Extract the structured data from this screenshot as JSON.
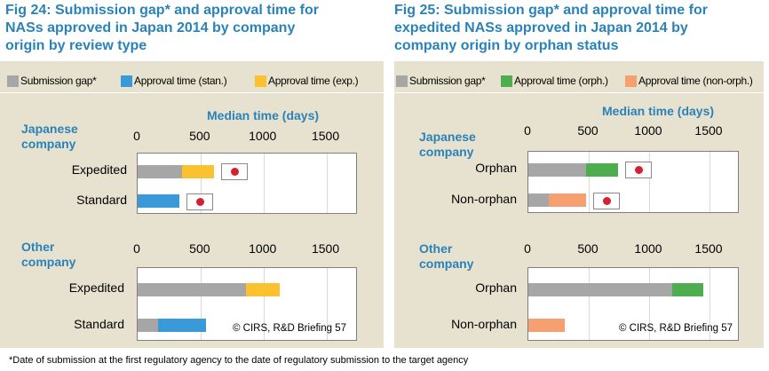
{
  "footnote": "*Date of submission at the first regulatory agency to the date of regulatory submission to the target agency",
  "colors": {
    "submission_gap": "#a6a6a6",
    "approval_standard": "#3a9ad9",
    "approval_expedited": "#f9c22e",
    "approval_orphan": "#4eae4f",
    "approval_non_orphan": "#f5a070",
    "title": "#2a82b8",
    "panel": "#e6e2cf",
    "flag_red": "#d4202f"
  },
  "figures": [
    {
      "title": "Fig 24: Submission gap* and approval time for\nNASs approved in Japan 2014 by company\norigin by review type",
      "legend": [
        {
          "label": "Submission gap*",
          "color": "#a6a6a6"
        },
        {
          "label": "Approval time (stan.)",
          "color": "#3a9ad9"
        },
        {
          "label": "Approval time (exp.)",
          "color": "#f9c22e"
        }
      ],
      "x_title": "Median time (days)",
      "copyright": "© CIRS, R&D Briefing 57"
    },
    {
      "title": "Fig 25: Submission gap* and approval time for\nexpedited NASs approved in Japan 2014 by\ncompany origin by orphan status",
      "legend": [
        {
          "label": "Submission gap*",
          "color": "#a6a6a6"
        },
        {
          "label": "Approval time (orph.)",
          "color": "#4eae4f"
        },
        {
          "label": "Approval time (non-orph.)",
          "color": "#f5a070"
        }
      ],
      "x_title": "Median time (days)",
      "copyright": "© CIRS, R&D Briefing 57"
    }
  ],
  "chart_data": [
    {
      "type": "bar",
      "orientation": "horizontal",
      "stacked": true,
      "title": "Fig 24: Submission gap* and approval time for NASs approved in Japan 2014 by company origin by review type",
      "group": "Japanese\ncompany",
      "categories": [
        "Expedited",
        "Standard"
      ],
      "series": [
        {
          "name": "Submission gap*",
          "color": "#a6a6a6",
          "values": [
            350,
            0
          ]
        },
        {
          "name": "Approval time (stan.)",
          "color": "#3a9ad9",
          "values": [
            0,
            330
          ]
        },
        {
          "name": "Approval time (exp.)",
          "color": "#f9c22e",
          "values": [
            260,
            0
          ]
        }
      ],
      "flags": [
        true,
        true
      ],
      "xticks": [
        0,
        500,
        1000,
        1500
      ],
      "xlim": [
        0,
        1750
      ],
      "xlabel": "Median time (days)"
    },
    {
      "type": "bar",
      "orientation": "horizontal",
      "stacked": true,
      "title": "Fig 24: Submission gap* and approval time for NASs approved in Japan 2014 by company origin by review type",
      "group": "Other\ncompany",
      "categories": [
        "Expedited",
        "Standard"
      ],
      "series": [
        {
          "name": "Submission gap*",
          "color": "#a6a6a6",
          "values": [
            860,
            160
          ]
        },
        {
          "name": "Approval time (stan.)",
          "color": "#3a9ad9",
          "values": [
            0,
            380
          ]
        },
        {
          "name": "Approval time (exp.)",
          "color": "#f9c22e",
          "values": [
            270,
            0
          ]
        }
      ],
      "flags": [
        false,
        false
      ],
      "xticks": [
        0,
        500,
        1000,
        1500
      ],
      "xlim": [
        0,
        1750
      ],
      "xlabel": ""
    },
    {
      "type": "bar",
      "orientation": "horizontal",
      "stacked": true,
      "title": "Fig 25: Submission gap* and approval time for expedited NASs approved in Japan 2014 by company origin by orphan status",
      "group": "Japanese\ncompany",
      "categories": [
        "Orphan",
        "Non-orphan"
      ],
      "series": [
        {
          "name": "Submission gap*",
          "color": "#a6a6a6",
          "values": [
            480,
            170
          ]
        },
        {
          "name": "Approval time (orph.)",
          "color": "#4eae4f",
          "values": [
            260,
            0
          ]
        },
        {
          "name": "Approval time (non-orph.)",
          "color": "#f5a070",
          "values": [
            0,
            310
          ]
        }
      ],
      "flags": [
        true,
        true
      ],
      "xticks": [
        0,
        500,
        1000,
        1500
      ],
      "xlim": [
        0,
        1750
      ],
      "xlabel": "Median time (days)"
    },
    {
      "type": "bar",
      "orientation": "horizontal",
      "stacked": true,
      "title": "Fig 25: Submission gap* and approval time for expedited NASs approved in Japan 2014 by company origin by orphan status",
      "group": "Other\ncompany",
      "categories": [
        "Orphan",
        "Non-orphan"
      ],
      "series": [
        {
          "name": "Submission gap*",
          "color": "#a6a6a6",
          "values": [
            1190,
            0
          ]
        },
        {
          "name": "Approval time (orph.)",
          "color": "#4eae4f",
          "values": [
            260,
            0
          ]
        },
        {
          "name": "Approval time (non-orph.)",
          "color": "#f5a070",
          "values": [
            0,
            300
          ]
        }
      ],
      "flags": [
        false,
        false
      ],
      "xticks": [
        0,
        500,
        1000,
        1500
      ],
      "xlim": [
        0,
        1750
      ],
      "xlabel": ""
    }
  ]
}
